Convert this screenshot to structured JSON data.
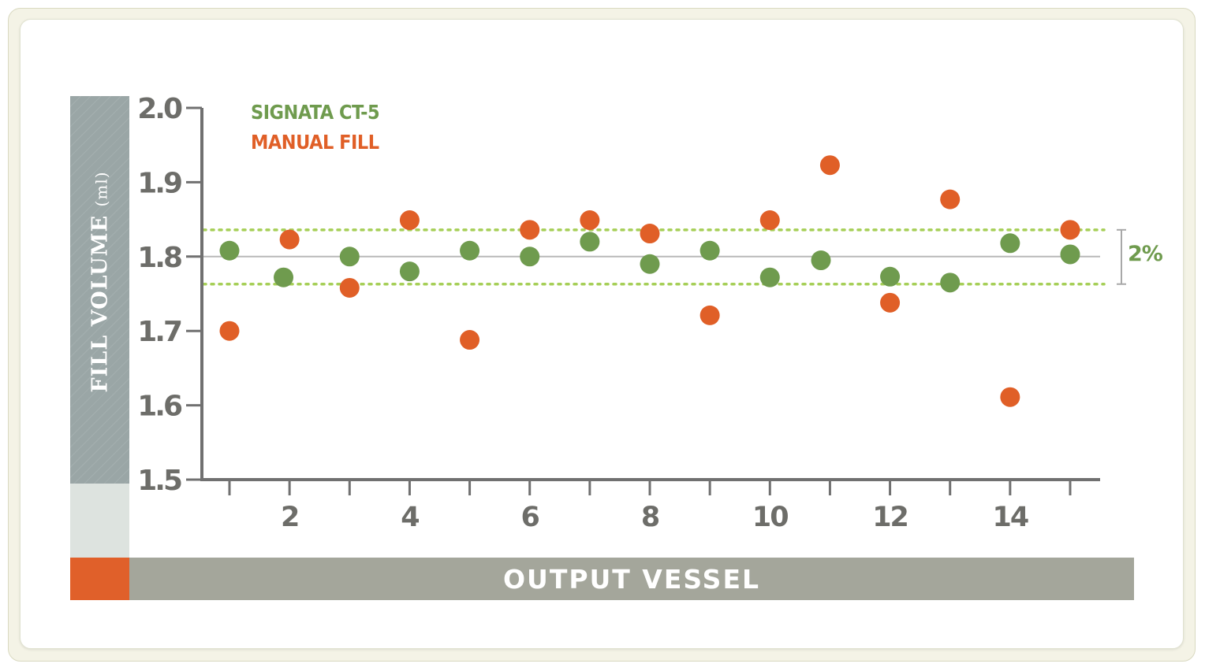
{
  "chart_data": {
    "type": "scatter",
    "xlabel": "OUTPUT VESSEL",
    "ylabel": "FILL VOLUME",
    "ylabel_unit": "(ml)",
    "ylim": [
      1.5,
      2.0
    ],
    "xlim": [
      0.55,
      15.5
    ],
    "yticks": [
      "1.5",
      "1.6",
      "1.7",
      "1.8",
      "1.9",
      "2.0"
    ],
    "ytick_values": [
      1.5,
      1.6,
      1.7,
      1.8,
      1.9,
      2.0
    ],
    "xticks": [
      1,
      2,
      3,
      4,
      5,
      6,
      7,
      8,
      9,
      10,
      11,
      12,
      13,
      14,
      15
    ],
    "xtick_labels": [
      "",
      "2",
      "",
      "4",
      "",
      "6",
      "",
      "8",
      "",
      "10",
      "",
      "12",
      "",
      "14",
      ""
    ],
    "grid": false,
    "legend_position": "top-left",
    "reference_lines": {
      "center": 1.8,
      "upper": 1.836,
      "lower": 1.763,
      "band_label": "2%"
    },
    "series": [
      {
        "name": "SIGNATA CT-5",
        "color": "#6f9b4e",
        "x": [
          1,
          1.9,
          3,
          4,
          5,
          6,
          7,
          8,
          9,
          10,
          10.85,
          12,
          13,
          14,
          15
        ],
        "y": [
          1.808,
          1.772,
          1.8,
          1.78,
          1.808,
          1.8,
          1.82,
          1.79,
          1.808,
          1.772,
          1.795,
          1.773,
          1.765,
          1.818,
          1.803
        ]
      },
      {
        "name": "MANUAL FILL",
        "color": "#e05f27",
        "x": [
          1,
          2,
          3,
          4,
          5,
          6,
          7,
          8,
          9,
          10,
          11,
          12,
          13,
          14,
          15
        ],
        "y": [
          1.7,
          1.823,
          1.758,
          1.849,
          1.688,
          1.836,
          1.849,
          1.831,
          1.721,
          1.849,
          1.923,
          1.738,
          1.877,
          1.611,
          1.836
        ]
      }
    ]
  },
  "colors": {
    "axis": "#707070",
    "band_line": "#a6cf57",
    "center_line": "#b9b9b9",
    "band_label": "#6f9b4e"
  }
}
